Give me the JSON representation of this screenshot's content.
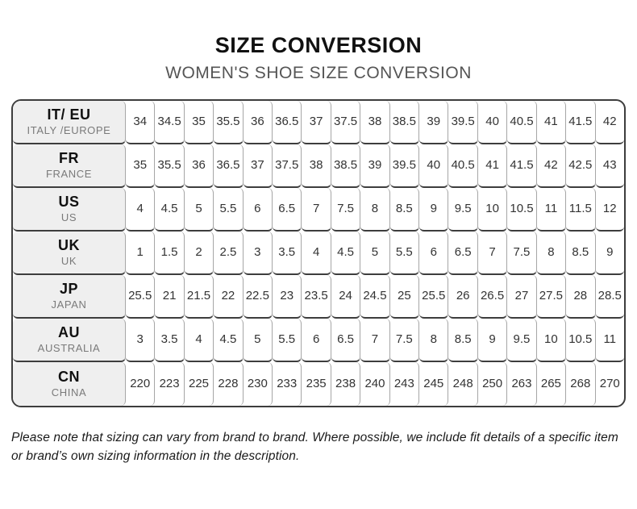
{
  "page": {
    "title": "SIZE CONVERSION",
    "subtitle": "WOMEN'S SHOE SIZE CONVERSION",
    "footnote": "Please note that sizing can vary from brand to brand. Where possible, we include fit details of a specific item or brand’s own sizing information in the description."
  },
  "chart_data": {
    "type": "table",
    "title": "SIZE CONVERSION",
    "subtitle": "WOMEN'S SHOE SIZE CONVERSION",
    "columns_per_row": 17,
    "rows": [
      {
        "code": "IT/ EU",
        "region": "ITALY /EUROPE",
        "sizes": [
          "34",
          "34.5",
          "35",
          "35.5",
          "36",
          "36.5",
          "37",
          "37.5",
          "38",
          "38.5",
          "39",
          "39.5",
          "40",
          "40.5",
          "41",
          "41.5",
          "42"
        ]
      },
      {
        "code": "FR",
        "region": "FRANCE",
        "sizes": [
          "35",
          "35.5",
          "36",
          "36.5",
          "37",
          "37.5",
          "38",
          "38.5",
          "39",
          "39.5",
          "40",
          "40.5",
          "41",
          "41.5",
          "42",
          "42.5",
          "43"
        ]
      },
      {
        "code": "US",
        "region": "US",
        "sizes": [
          "4",
          "4.5",
          "5",
          "5.5",
          "6",
          "6.5",
          "7",
          "7.5",
          "8",
          "8.5",
          "9",
          "9.5",
          "10",
          "10.5",
          "11",
          "11.5",
          "12"
        ]
      },
      {
        "code": "UK",
        "region": "UK",
        "sizes": [
          "1",
          "1.5",
          "2",
          "2.5",
          "3",
          "3.5",
          "4",
          "4.5",
          "5",
          "5.5",
          "6",
          "6.5",
          "7",
          "7.5",
          "8",
          "8.5",
          "9"
        ]
      },
      {
        "code": "JP",
        "region": "JAPAN",
        "sizes": [
          "25.5",
          "21",
          "21.5",
          "22",
          "22.5",
          "23",
          "23.5",
          "24",
          "24.5",
          "25",
          "25.5",
          "26",
          "26.5",
          "27",
          "27.5",
          "28",
          "28.5"
        ]
      },
      {
        "code": "AU",
        "region": "AUSTRALIA",
        "sizes": [
          "3",
          "3.5",
          "4",
          "4.5",
          "5",
          "5.5",
          "6",
          "6.5",
          "7",
          "7.5",
          "8",
          "8.5",
          "9",
          "9.5",
          "10",
          "10.5",
          "11"
        ]
      },
      {
        "code": "CN",
        "region": "CHINA",
        "sizes": [
          "220",
          "223",
          "225",
          "228",
          "230",
          "233",
          "235",
          "238",
          "240",
          "243",
          "245",
          "248",
          "250",
          "263",
          "265",
          "268",
          "270"
        ]
      }
    ]
  },
  "colors": {
    "header_cell_bg": "#efefef",
    "outer_border": "#3d3d3d",
    "inner_border_light": "#a6a6a6",
    "title_text": "#111111",
    "subtitle_text": "#555555",
    "region_text": "#7a7a7a",
    "cell_text": "#333333"
  }
}
